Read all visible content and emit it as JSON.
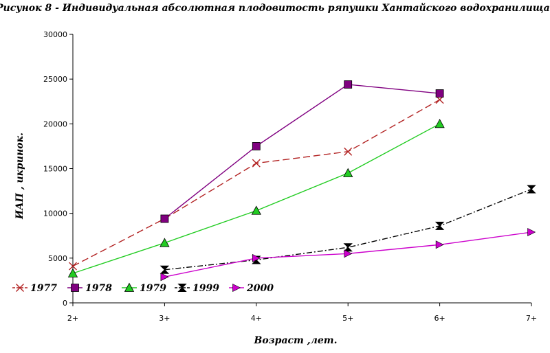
{
  "chart_data": {
    "type": "line",
    "title": "Рисунок 8 - Индивидуальная абсолютная плодовитость ряпушки Хантайского водохранилища",
    "xlabel": "Возраст ,лет.",
    "ylabel": "ИАП , икринок.",
    "categories": [
      "2+",
      "3+",
      "4+",
      "5+",
      "6+",
      "7+"
    ],
    "ylim": [
      0,
      30000
    ],
    "yticks": [
      0,
      5000,
      10000,
      15000,
      20000,
      25000,
      30000
    ],
    "grid": false,
    "legend_position": "bottom-left",
    "series": [
      {
        "name": "1977",
        "marker": "bowtie",
        "color": "#b22222",
        "dash": "10,5",
        "values": [
          4100,
          9400,
          15600,
          16900,
          22700,
          null
        ]
      },
      {
        "name": "1978",
        "marker": "square",
        "color": "#800080",
        "dash": "",
        "values": [
          null,
          9400,
          17500,
          24400,
          23400,
          null
        ]
      },
      {
        "name": "1979",
        "marker": "triangle-up",
        "color": "#22cc22",
        "dash": "",
        "values": [
          3300,
          6700,
          10300,
          14500,
          20000,
          null
        ]
      },
      {
        "name": "1999",
        "marker": "hourglass",
        "color": "#000000",
        "dash": "8,3,2,3",
        "values": [
          null,
          3700,
          4800,
          6200,
          8600,
          12700
        ]
      },
      {
        "name": "2000",
        "marker": "triangle-right",
        "color": "#cc00cc",
        "dash": "",
        "values": [
          null,
          2900,
          5000,
          5500,
          6500,
          7900
        ]
      }
    ]
  }
}
